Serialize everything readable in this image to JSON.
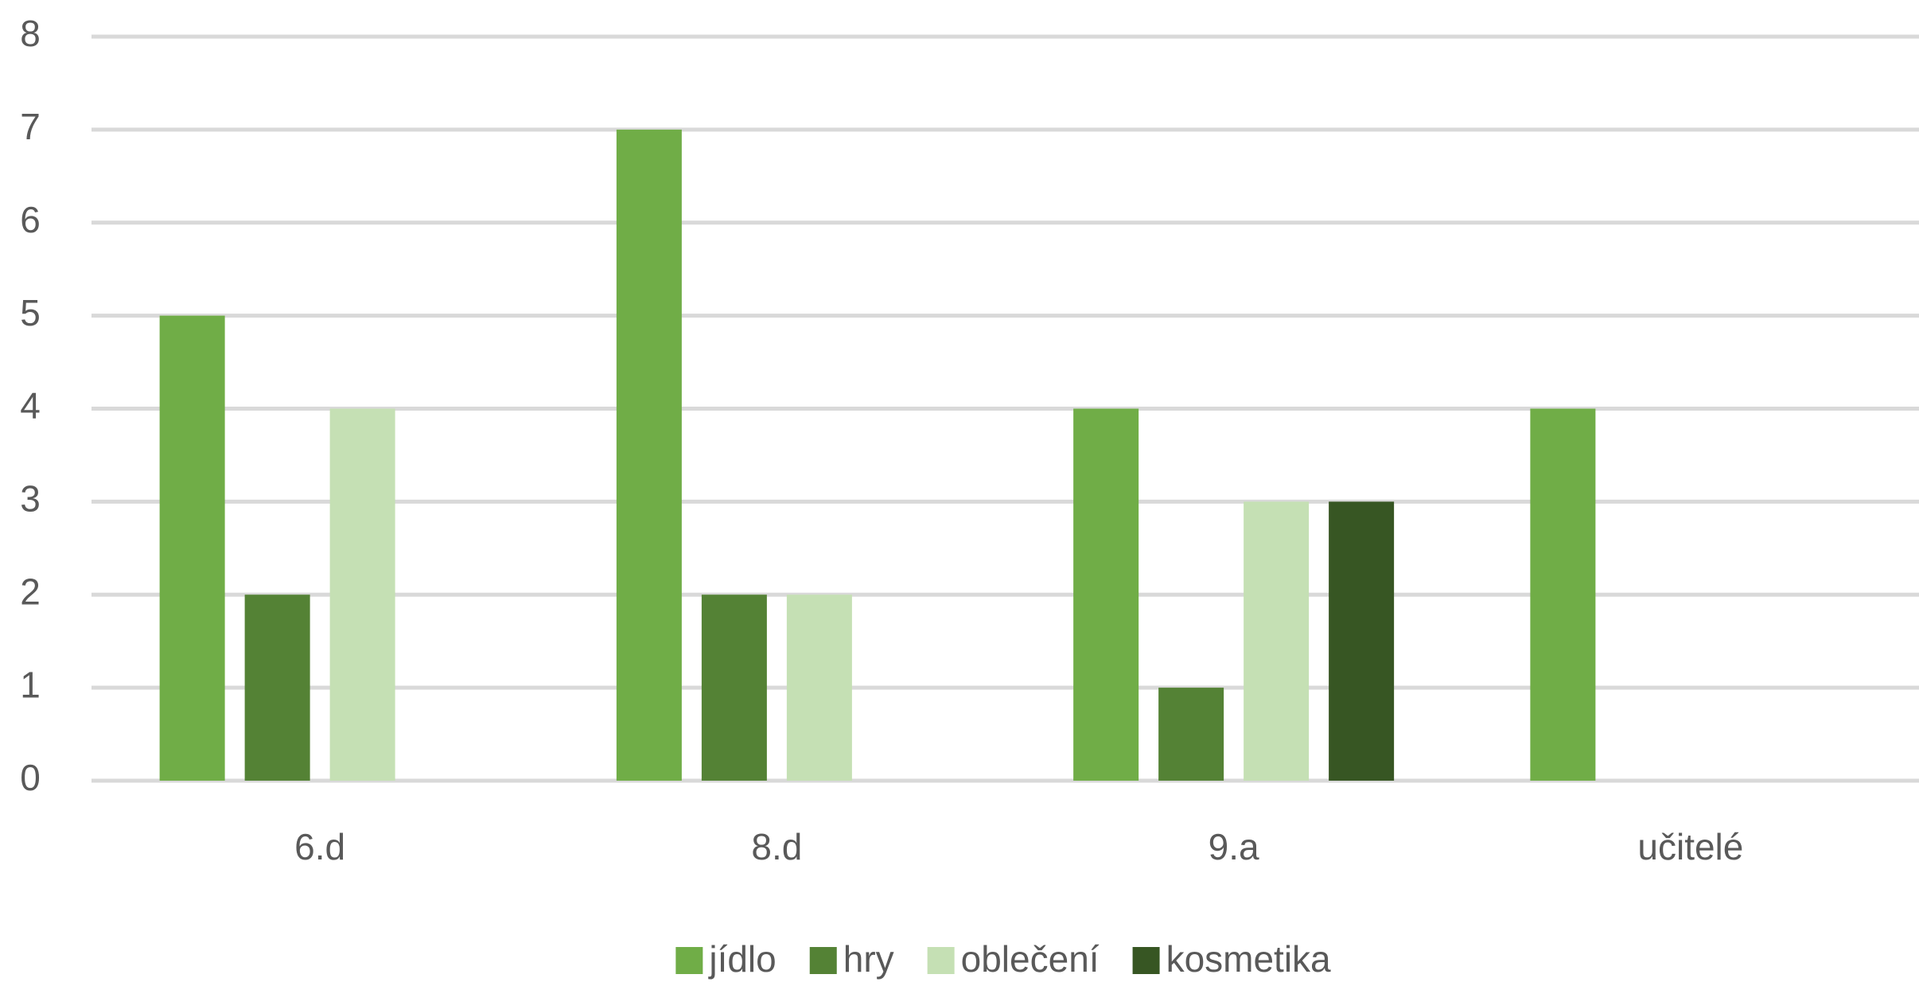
{
  "chart_data": {
    "type": "bar",
    "categories": [
      "6.d",
      "8.d",
      "9.a",
      "učitelé"
    ],
    "series": [
      {
        "name": "jídlo",
        "color": "#70ad47",
        "values": [
          5,
          7,
          4,
          4
        ]
      },
      {
        "name": "hry",
        "color": "#548235",
        "values": [
          2,
          2,
          1,
          0
        ]
      },
      {
        "name": "oblečení",
        "color": "#c5e0b4",
        "values": [
          4,
          2,
          3,
          0
        ]
      },
      {
        "name": "kosmetika",
        "color": "#375623",
        "values": [
          0,
          0,
          3,
          0
        ]
      }
    ],
    "ylim": [
      0,
      8
    ],
    "yticks": [
      0,
      1,
      2,
      3,
      4,
      5,
      6,
      7,
      8
    ],
    "grid": true,
    "legend": "bottom"
  }
}
